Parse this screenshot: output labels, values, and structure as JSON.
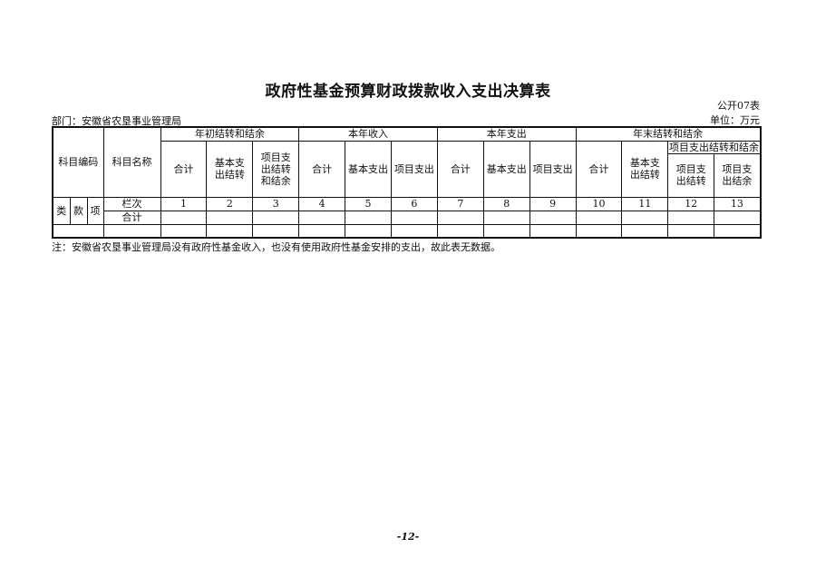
{
  "title": "政府性基金预算财政拨款收入支出决算表",
  "form_no": "公开07表",
  "unit": "单位：万元",
  "department": "部门：安徽省农垦事业管理局",
  "headers": {
    "code": "科目编码",
    "name": "科目名称",
    "g1": "年初结转和结余",
    "g2": "本年收入",
    "g3": "本年支出",
    "g4": "年末结转和结余",
    "g4sub": "项目支出结转和结余",
    "total": "合计",
    "basic": "基本支出",
    "project": "项目支出",
    "basic_carry": "基本支出结转",
    "proj_carry_bal": "项目支出结转和结余",
    "proj_carry": "项目支出结转",
    "proj_bal": "项目支出结余",
    "lei": "类",
    "kuan": "款",
    "xiang": "项"
  },
  "row_labels": {
    "lanci": "栏次",
    "total": "合计"
  },
  "column_numbers": [
    "1",
    "2",
    "3",
    "4",
    "5",
    "6",
    "7",
    "8",
    "9",
    "10",
    "11",
    "12",
    "13"
  ],
  "note": "注：安徽省农垦事业管理局没有政府性基金收入，也没有使用政府性基金安排的支出，故此表无数据。",
  "page_number": "-12-"
}
